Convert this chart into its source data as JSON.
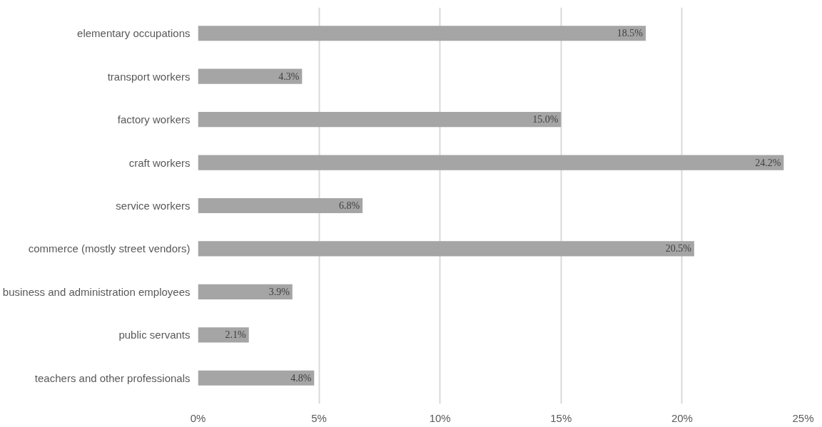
{
  "chart_data": {
    "type": "bar",
    "orientation": "horizontal",
    "categories": [
      "elementary occupations",
      "transport workers",
      "factory workers",
      "craft workers",
      "service workers",
      "commerce (mostly street vendors)",
      "business and administration employees",
      "public servants",
      "teachers and other professionals"
    ],
    "values": [
      18.5,
      4.3,
      15.0,
      24.2,
      6.8,
      20.5,
      3.9,
      2.1,
      4.8
    ],
    "value_labels": [
      "18.5%",
      "4.3%",
      "15.0%",
      "24.2%",
      "6.8%",
      "20.5%",
      "3.9%",
      "2.1%",
      "4.8%"
    ],
    "color": "#a5a5a5",
    "xlim": [
      0,
      25
    ],
    "xticks": [
      {
        "value": 0,
        "label": "0%"
      },
      {
        "value": 5,
        "label": "5%"
      },
      {
        "value": 10,
        "label": "10%"
      },
      {
        "value": 15,
        "label": "15%"
      },
      {
        "value": 20,
        "label": "20%"
      },
      {
        "value": 25,
        "label": "25%"
      }
    ],
    "grid": "x"
  }
}
